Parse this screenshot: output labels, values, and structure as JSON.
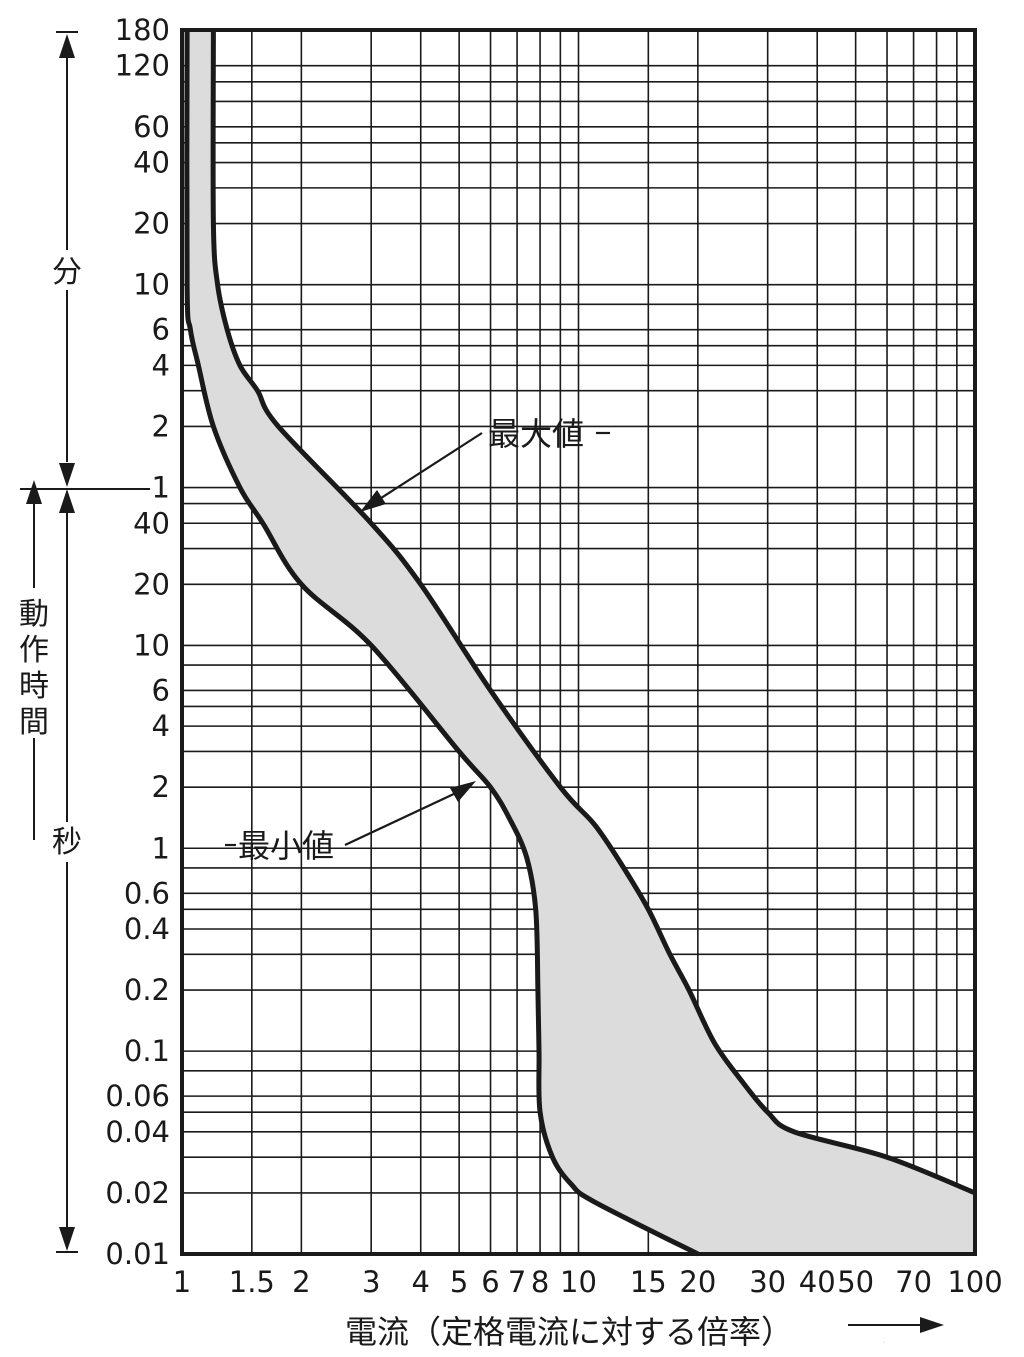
{
  "chart_data": {
    "type": "area",
    "xlabel": "電流（定格電流に対する倍率）",
    "x_arrow": "⟶",
    "x_scale": "log",
    "xlim": [
      1,
      100
    ],
    "x_ticks": [
      {
        "v": 1,
        "t": "1"
      },
      {
        "v": 1.5,
        "t": "1.5"
      },
      {
        "v": 2,
        "t": "2"
      },
      {
        "v": 3,
        "t": "3"
      },
      {
        "v": 4,
        "t": "4"
      },
      {
        "v": 5,
        "t": "5"
      },
      {
        "v": 6,
        "t": "6"
      },
      {
        "v": 7,
        "t": "7"
      },
      {
        "v": 8,
        "t": "8"
      },
      {
        "v": 10,
        "t": "10"
      },
      {
        "v": 15,
        "t": "15"
      },
      {
        "v": 20,
        "t": "20"
      },
      {
        "v": 30,
        "t": "30"
      },
      {
        "v": 40,
        "t": "40"
      },
      {
        "v": 50,
        "t": "50"
      },
      {
        "v": 70,
        "t": "70"
      },
      {
        "v": 100,
        "t": "100"
      }
    ],
    "x_grid": [
      1,
      1.5,
      2,
      3,
      4,
      5,
      6,
      7,
      8,
      9,
      10,
      15,
      20,
      30,
      40,
      50,
      60,
      70,
      80,
      90,
      100
    ],
    "y_scale": "log",
    "ylim_seconds": [
      0.01,
      10800
    ],
    "y_units": [
      {
        "name": "分",
        "from": 60,
        "to": 10800
      },
      {
        "name": "秒",
        "from": 0.01,
        "to": 60
      }
    ],
    "ylabel": "動作時間",
    "y_ticks": [
      {
        "v": 10800,
        "t": "180"
      },
      {
        "v": 7200,
        "t": "120"
      },
      {
        "v": 3600,
        "t": "60"
      },
      {
        "v": 2400,
        "t": "40"
      },
      {
        "v": 1200,
        "t": "20"
      },
      {
        "v": 600,
        "t": "10"
      },
      {
        "v": 360,
        "t": "6"
      },
      {
        "v": 240,
        "t": "4"
      },
      {
        "v": 120,
        "t": "2"
      },
      {
        "v": 60,
        "t": "1"
      },
      {
        "v": 40,
        "t": "40"
      },
      {
        "v": 20,
        "t": "20"
      },
      {
        "v": 10,
        "t": "10"
      },
      {
        "v": 6,
        "t": "6"
      },
      {
        "v": 4,
        "t": "4"
      },
      {
        "v": 2,
        "t": "2"
      },
      {
        "v": 1,
        "t": "1"
      },
      {
        "v": 0.6,
        "t": "0.6"
      },
      {
        "v": 0.4,
        "t": "0.4"
      },
      {
        "v": 0.2,
        "t": "0.2"
      },
      {
        "v": 0.1,
        "t": "0.1"
      },
      {
        "v": 0.06,
        "t": "0.06"
      },
      {
        "v": 0.04,
        "t": "0.04"
      },
      {
        "v": 0.02,
        "t": "0.02"
      },
      {
        "v": 0.01,
        "t": "0.01"
      }
    ],
    "y_grid": [
      10800,
      7200,
      6000,
      4800,
      3600,
      3000,
      2400,
      1800,
      1200,
      600,
      480,
      360,
      300,
      240,
      180,
      120,
      60,
      50,
      40,
      30,
      20,
      10,
      8,
      6,
      5,
      4,
      3,
      2,
      1,
      0.8,
      0.6,
      0.5,
      0.4,
      0.3,
      0.2,
      0.1,
      0.08,
      0.06,
      0.05,
      0.04,
      0.03,
      0.02,
      0.01
    ],
    "series": [
      {
        "name": "最大値",
        "points": [
          [
            1.2,
            10800
          ],
          [
            1.2,
            1200
          ],
          [
            1.23,
            600
          ],
          [
            1.3,
            360
          ],
          [
            1.4,
            240
          ],
          [
            1.55,
            180
          ],
          [
            1.75,
            120
          ],
          [
            3,
            40
          ],
          [
            4,
            20
          ],
          [
            6,
            6
          ],
          [
            9,
            2
          ],
          [
            11,
            1.3
          ],
          [
            13,
            0.8
          ],
          [
            15,
            0.5
          ],
          [
            17,
            0.3
          ],
          [
            19,
            0.2
          ],
          [
            22,
            0.11
          ],
          [
            26,
            0.07
          ],
          [
            30,
            0.05
          ],
          [
            35,
            0.04
          ],
          [
            60,
            0.03
          ],
          [
            100,
            0.02
          ]
        ]
      },
      {
        "name": "最小値",
        "points": [
          [
            1.03,
            10800
          ],
          [
            1.03,
            600
          ],
          [
            1.05,
            360
          ],
          [
            1.1,
            240
          ],
          [
            1.2,
            120
          ],
          [
            1.4,
            60
          ],
          [
            1.6,
            40
          ],
          [
            2,
            20
          ],
          [
            3,
            10
          ],
          [
            5,
            3
          ],
          [
            6,
            2
          ],
          [
            6.7,
            1.4
          ],
          [
            7.4,
            0.9
          ],
          [
            7.8,
            0.5
          ],
          [
            7.9,
            0.2
          ],
          [
            7.95,
            0.1
          ],
          [
            8,
            0.05
          ],
          [
            8.6,
            0.03
          ],
          [
            9.6,
            0.022
          ],
          [
            11,
            0.018
          ],
          [
            20,
            0.01
          ]
        ]
      }
    ],
    "annotations": [
      {
        "text": "最大値",
        "target": [
          3,
          40
        ]
      },
      {
        "text": "最小値",
        "target": [
          6.1,
          2
        ]
      }
    ]
  }
}
